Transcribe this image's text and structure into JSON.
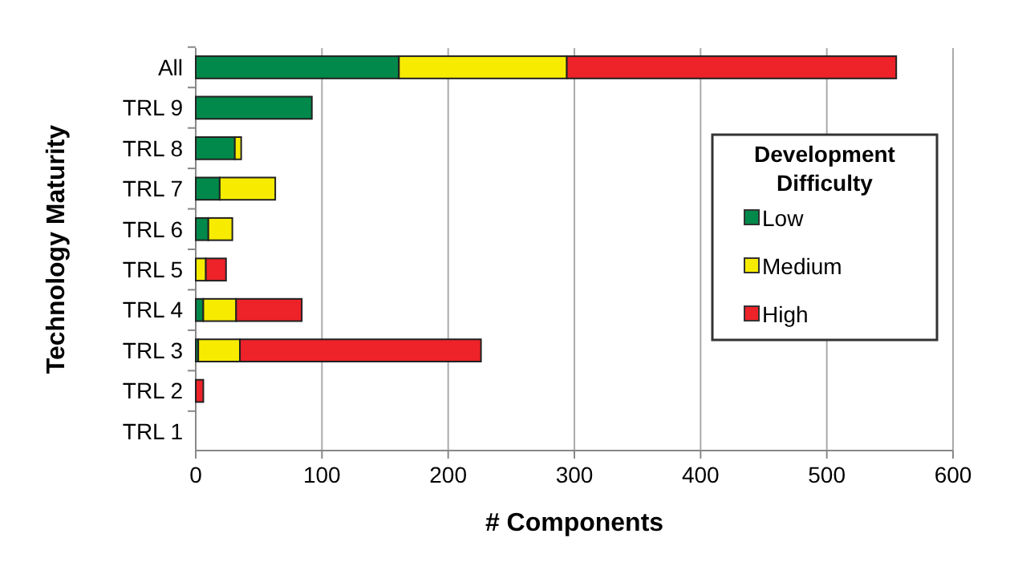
{
  "chart_data": {
    "type": "bar",
    "orientation": "horizontal",
    "stacked": true,
    "xlabel": "# Components",
    "ylabel": "Technology Maturity",
    "legend_title": "Development Difficulty",
    "legend": "right",
    "grid": "x",
    "categories": [
      "All",
      "TRL 9",
      "TRL 8",
      "TRL 7",
      "TRL 6",
      "TRL 5",
      "TRL 4",
      "TRL 3",
      "TRL 2",
      "TRL 1"
    ],
    "series": [
      {
        "name": "Low",
        "color": "#00894a",
        "values": [
          161,
          92,
          31,
          19,
          10,
          0,
          6,
          2,
          0,
          0
        ]
      },
      {
        "name": "Medium",
        "color": "#f7ec00",
        "values": [
          133,
          0,
          5,
          44,
          19,
          8,
          26,
          33,
          0,
          0
        ]
      },
      {
        "name": "High",
        "color": "#ee2229",
        "values": [
          261,
          0,
          0,
          0,
          0,
          16,
          52,
          191,
          6,
          0
        ]
      }
    ],
    "xlim": [
      0,
      600
    ],
    "xticks": [
      0,
      100,
      200,
      300,
      400,
      500,
      600
    ]
  }
}
